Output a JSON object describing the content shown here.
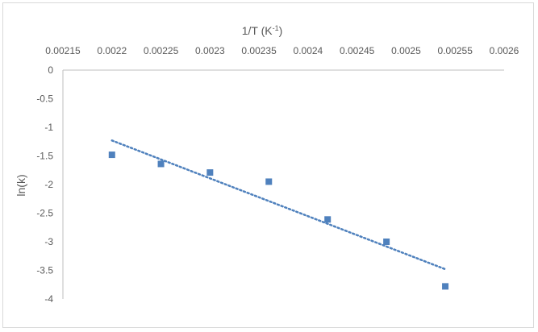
{
  "chart_data": {
    "type": "scatter",
    "xlabel": "1/T (K-1)",
    "xlabel_parts": {
      "main": "1/T (K",
      "superscript": "-1",
      "close": ")"
    },
    "ylabel": "ln(k)",
    "x_tick_labels": [
      "0.00215",
      "0.0022",
      "0.00225",
      "0.0023",
      "0.00235",
      "0.0024",
      "0.00245",
      "0.0025",
      "0.00255",
      "0.0026"
    ],
    "y_tick_labels": [
      "0",
      "-0.5",
      "-1",
      "-1.5",
      "-2",
      "-2.5",
      "-3",
      "-3.5",
      "-4"
    ],
    "xlim": [
      0.00215,
      0.0026
    ],
    "ylim": [
      -4,
      0
    ],
    "x_axis_position": "top",
    "grid": false,
    "series": [
      {
        "marker": "square",
        "color": "#4f81bd",
        "points": [
          {
            "x": 0.0022,
            "y": -1.48
          },
          {
            "x": 0.00225,
            "y": -1.64
          },
          {
            "x": 0.0023,
            "y": -1.79
          },
          {
            "x": 0.00236,
            "y": -1.95
          },
          {
            "x": 0.00242,
            "y": -2.61
          },
          {
            "x": 0.00248,
            "y": -3.0
          },
          {
            "x": 0.00254,
            "y": -3.78
          }
        ]
      }
    ],
    "trendline": {
      "style": "dotted",
      "color": "#4f81bd",
      "type": "linear",
      "x_range": [
        0.0022,
        0.00254
      ],
      "y_range": [
        -1.23,
        -3.48
      ]
    }
  }
}
